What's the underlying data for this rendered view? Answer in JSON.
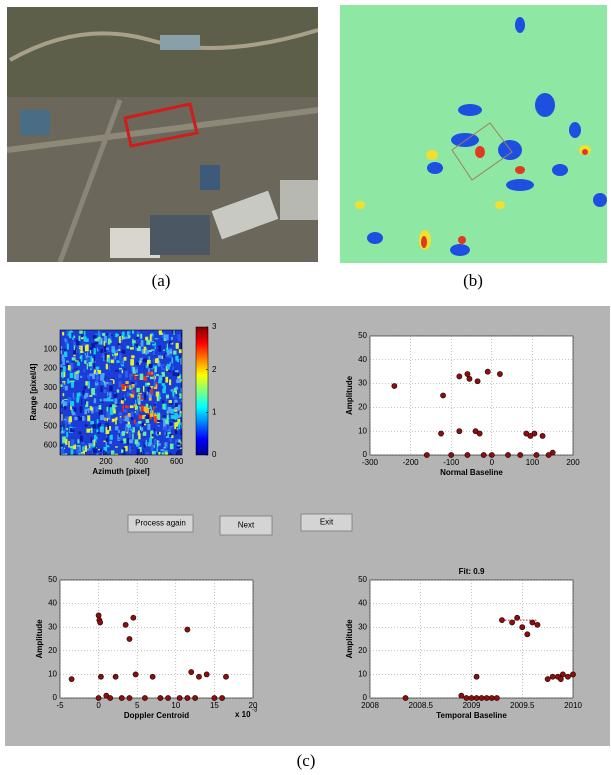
{
  "panels": {
    "a": {
      "label": "(a)"
    },
    "b": {
      "label": "(b)"
    },
    "c": {
      "label": "(c)"
    }
  },
  "gui": {
    "image_plot": {
      "ylabel": "Range [pixel/4]",
      "xlabel": "Azimuth [pixel]",
      "xlim": [
        -60,
        630
      ],
      "xticks": [
        200,
        400,
        600
      ],
      "ylim": [
        0,
        650
      ],
      "yticks": [
        100,
        200,
        300,
        400,
        500,
        600
      ],
      "clim": [
        0,
        3
      ],
      "cticks": [
        0,
        1,
        2,
        3
      ]
    },
    "buttons": [
      "Process again",
      "Next",
      "Exit"
    ],
    "plots": [
      {
        "type": "scatter",
        "xlabel": "Normal Baseline",
        "ylabel": "Amplitude",
        "xlim": [
          -300,
          200
        ],
        "xticks": [
          -300,
          -200,
          -100,
          0,
          100,
          200
        ],
        "ylim": [
          0,
          50
        ],
        "yticks": [
          0,
          10,
          20,
          30,
          40,
          50
        ],
        "x": [
          -240,
          -120,
          -125,
          -80,
          -80,
          -60,
          -55,
          -35,
          -40,
          -30,
          -10,
          20,
          85,
          95,
          105,
          125,
          -160,
          -100,
          -60,
          -20,
          0,
          40,
          70,
          110,
          140,
          150
        ],
        "y": [
          29,
          25,
          9,
          10,
          33,
          34,
          32,
          31,
          10,
          9,
          35,
          34,
          9,
          8,
          9,
          8,
          0,
          0,
          0,
          0,
          0,
          0,
          0,
          0,
          0,
          1
        ]
      },
      {
        "type": "scatter",
        "xlabel": "Doppler Centroid",
        "ylabel": "Amplitude",
        "x_multiplier": {
          "base": "x 10",
          "exponent": "-3"
        },
        "xlim": [
          -5,
          20
        ],
        "xticks": [
          -5,
          0,
          5,
          10,
          15,
          20
        ],
        "ylim": [
          0,
          50
        ],
        "yticks": [
          0,
          10,
          20,
          30,
          40,
          50
        ],
        "x": [
          -3.5,
          0,
          0.1,
          0.2,
          0.3,
          1,
          2.2,
          3.5,
          4,
          4.5,
          4.8,
          7,
          11.5,
          12,
          13,
          14,
          16.5,
          0,
          1.5,
          3,
          4,
          6,
          8,
          9,
          10.5,
          11.5,
          12.5,
          15,
          16
        ],
        "y": [
          8,
          35,
          33,
          32,
          9,
          1,
          9,
          31,
          25,
          34,
          10,
          9,
          29,
          11,
          9,
          10,
          9,
          0,
          0,
          0,
          0,
          0,
          0,
          0,
          0,
          0,
          0,
          0,
          0
        ]
      },
      {
        "type": "scatter",
        "title": "Fit: 0.9",
        "xlabel": "Temporal Baseline",
        "ylabel": "Amplitude",
        "xlim": [
          2008,
          2010
        ],
        "xticks": [
          2008,
          2008.5,
          2009,
          2009.5,
          2010
        ],
        "ylim": [
          0,
          50
        ],
        "yticks": [
          0,
          10,
          20,
          30,
          40,
          50
        ],
        "x": [
          2008.35,
          2008.9,
          2008.95,
          2009.0,
          2009.05,
          2009.1,
          2009.15,
          2009.2,
          2009.25,
          2009.05,
          2009.3,
          2009.4,
          2009.45,
          2009.5,
          2009.55,
          2009.6,
          2009.65,
          2009.8,
          2009.85,
          2009.9,
          2009.95,
          2010,
          2009.75,
          2009.88
        ],
        "y": [
          0,
          1,
          0,
          0,
          0,
          0,
          0,
          0,
          0,
          9,
          33,
          32,
          34,
          30,
          27,
          32,
          31,
          9,
          9,
          10,
          9,
          10,
          8,
          8
        ],
        "fit": {
          "x": [
            2008.9,
            2009.2,
            null,
            2009.3,
            2009.65,
            null,
            2009.75,
            2010
          ],
          "y": [
            0,
            0,
            null,
            33,
            33,
            null,
            9,
            9
          ]
        }
      }
    ]
  }
}
